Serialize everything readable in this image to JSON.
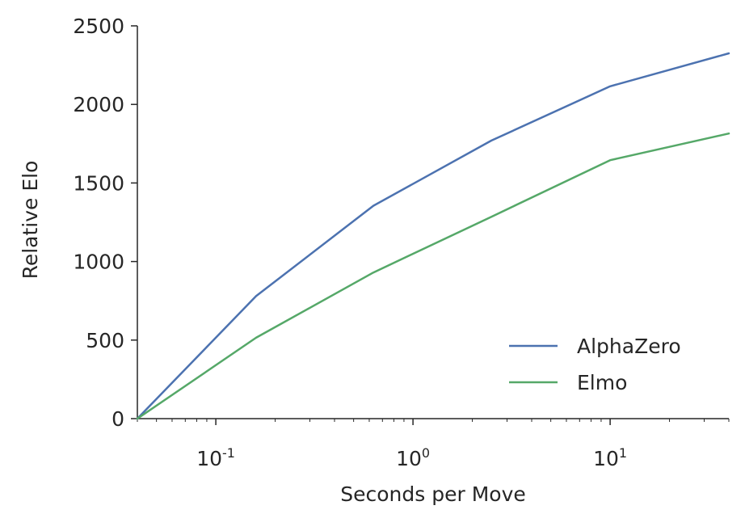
{
  "chart_data": {
    "type": "line",
    "xlabel": "Seconds per Move",
    "ylabel": "Relative Elo",
    "x_scale": "log",
    "xlim": [
      0.04,
      40
    ],
    "ylim": [
      0,
      2500
    ],
    "grid": false,
    "legend_position": "lower-right",
    "yticks": [
      {
        "value": 0,
        "label": "0"
      },
      {
        "value": 500,
        "label": "500"
      },
      {
        "value": 1000,
        "label": "1000"
      },
      {
        "value": 1500,
        "label": "1500"
      },
      {
        "value": 2000,
        "label": "2000"
      },
      {
        "value": 2500,
        "label": "2500"
      }
    ],
    "xticks": [
      {
        "value": 0.1,
        "base": "10",
        "exponent": "-1"
      },
      {
        "value": 1,
        "base": "10",
        "exponent": "0"
      },
      {
        "value": 10,
        "base": "10",
        "exponent": "1"
      }
    ],
    "series": [
      {
        "name": "AlphaZero",
        "color": "#4c72b0",
        "points": [
          [
            0.04,
            0
          ],
          [
            0.16,
            780
          ],
          [
            0.63,
            1355
          ],
          [
            2.5,
            1770
          ],
          [
            10,
            2115
          ],
          [
            40,
            2325
          ]
        ]
      },
      {
        "name": "Elmo",
        "color": "#55a868",
        "points": [
          [
            0.04,
            0
          ],
          [
            0.16,
            515
          ],
          [
            0.63,
            930
          ],
          [
            2.5,
            1285
          ],
          [
            10,
            1645
          ],
          [
            40,
            1815
          ]
        ]
      }
    ]
  }
}
